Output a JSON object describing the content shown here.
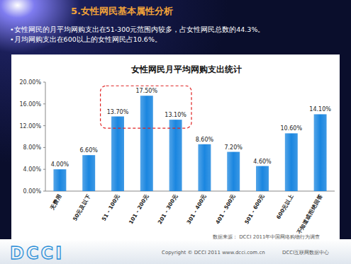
{
  "header": {
    "title": "5.女性网民基本属性分析",
    "bullets": [
      "•女性网民的月平均网购支出在51-300元范围内较多，占女性网民总数的44.3%。",
      "•月均网购支出在600以上的女性网民占10.6%。"
    ]
  },
  "chart_data": {
    "type": "bar",
    "title": "女性网民月平均网购支出统计",
    "categories": [
      "无费用",
      "50元及以下",
      "51 - 100元",
      "101 - 200元",
      "201 - 300元",
      "301 - 400元",
      "401 - 500元",
      "501 - 600元",
      "600元以上",
      "不知道或拒绝回答"
    ],
    "values": [
      4.0,
      6.6,
      13.7,
      17.5,
      13.1,
      8.6,
      7.2,
      4.6,
      10.6,
      14.1
    ],
    "value_labels": [
      "4.00%",
      "6.60%",
      "13.70%",
      "17.50%",
      "13.10%",
      "8.60%",
      "7.20%",
      "4.60%",
      "10.60%",
      "14.10%"
    ],
    "color": "#1a86e0",
    "ylim": [
      0,
      20
    ],
    "yticks": [
      {
        "value": 0,
        "label": "0.00%"
      },
      {
        "value": 4,
        "label": "4.00%"
      },
      {
        "value": 8,
        "label": "8.00%"
      },
      {
        "value": 12,
        "label": "12.00%"
      },
      {
        "value": 16,
        "label": "16.00%"
      },
      {
        "value": 20,
        "label": "20.00%"
      }
    ],
    "grid": false,
    "data_labels": true
  },
  "footer": {
    "source": "数据来源： DCCI 2011年中国网络购物行为调查",
    "copyright": "Copyright © DCCI 2011 www.dcci.com.cn",
    "org": "DCCI互联网数据中心",
    "logo": "DCCI"
  }
}
